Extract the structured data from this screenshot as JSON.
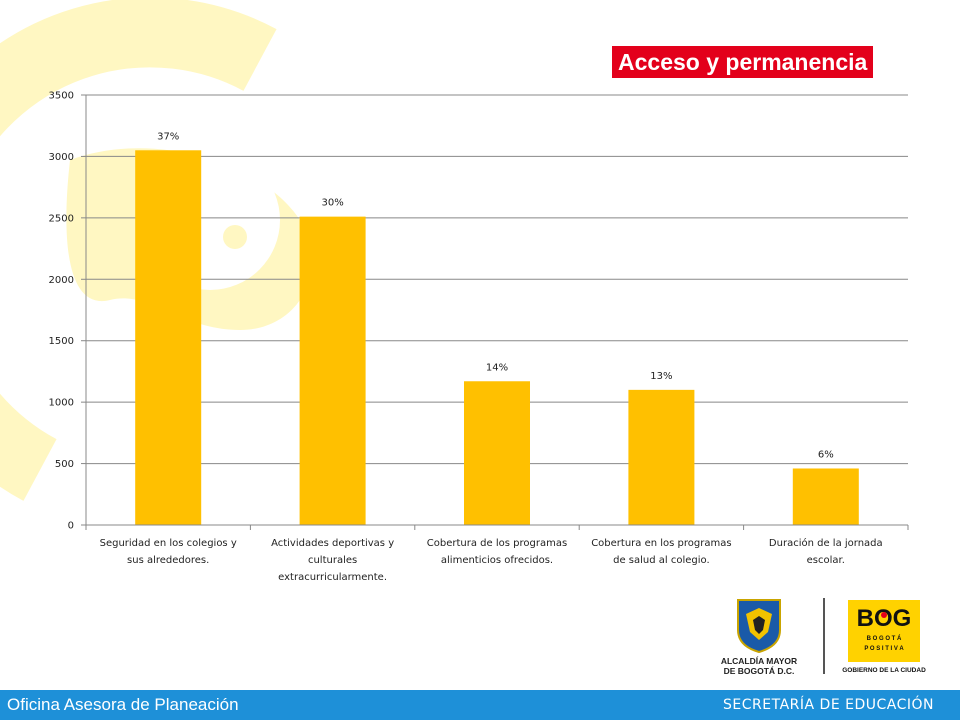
{
  "header": {
    "title": "Acceso y permanencia"
  },
  "chart_data": {
    "type": "bar",
    "title": "",
    "xlabel": "",
    "ylabel": "",
    "ylim": [
      0,
      3500
    ],
    "yticks": [
      "0",
      "500",
      "1000",
      "1500",
      "2000",
      "2500",
      "3000",
      "3500"
    ],
    "grid": true,
    "categories": [
      "Seguridad en los colegios y sus alrededores.",
      "Actividades deportivas y culturales extracurricularmente.",
      "Cobertura de los programas alimenticios ofrecidos.",
      "Cobertura en los programas de salud al colegio.",
      "Duración de la jornada escolar."
    ],
    "values": [
      3050,
      2510,
      1170,
      1100,
      460
    ],
    "data_labels": [
      "37%",
      "30%",
      "14%",
      "13%",
      "6%"
    ],
    "colors": {
      "bar": "#ffc000",
      "grid": "#888888"
    }
  },
  "logos": {
    "alcaldia_line1": "ALCALDÍA MAYOR",
    "alcaldia_line2": "DE BOGOTÁ D.C.",
    "bog_word": "BOG",
    "bog_sub1": "B O G O T Á",
    "bog_sub2": "P O S I T I V A",
    "gobierno": "GOBIERNO DE LA CIUDAD"
  },
  "footer": {
    "left": "Oficina Asesora de Planeación",
    "right": "SECRETARÍA DE EDUCACIÓN",
    "color": "#1e90d8"
  }
}
